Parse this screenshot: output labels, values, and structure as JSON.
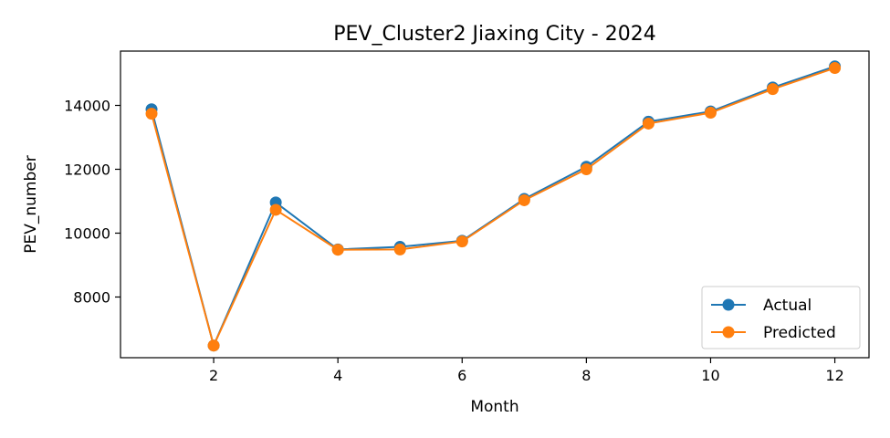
{
  "chart_data": {
    "type": "line",
    "title": "PEV_Cluster2 Jiaxing City - 2024",
    "xlabel": "Month",
    "ylabel": "PEV_number",
    "x": [
      1,
      2,
      3,
      4,
      5,
      6,
      7,
      8,
      9,
      10,
      11,
      12
    ],
    "xlim": [
      0.5,
      12.55
    ],
    "ylim": [
      6100,
      15700
    ],
    "xticks": [
      2,
      4,
      6,
      8,
      10,
      12
    ],
    "yticks": [
      8000,
      10000,
      12000,
      14000
    ],
    "grid": false,
    "legend": "lower-right",
    "series": [
      {
        "name": "Actual",
        "color": "#1f77b4",
        "marker": "circle",
        "values": [
          13880,
          6480,
          10960,
          9490,
          9570,
          9760,
          11070,
          12080,
          13490,
          13810,
          14560,
          15220
        ]
      },
      {
        "name": "Predicted",
        "color": "#ff7f0e",
        "marker": "circle",
        "values": [
          13740,
          6480,
          10730,
          9480,
          9490,
          9740,
          11030,
          12000,
          13430,
          13770,
          14510,
          15170
        ]
      }
    ]
  }
}
